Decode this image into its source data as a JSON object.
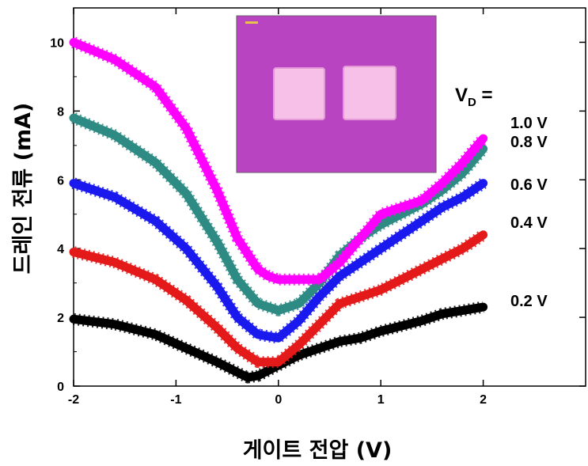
{
  "chart_data": {
    "type": "line",
    "xlabel": "게이트 전압 (V)",
    "ylabel": "드레인 전류 (mA)",
    "xlim": [
      -2,
      3
    ],
    "ylim": [
      0,
      11
    ],
    "xticks": [
      "-2",
      "-1",
      "0",
      "1",
      "2"
    ],
    "yticks": [
      "0",
      "2",
      "4",
      "6",
      "8",
      "10"
    ],
    "legend_title_main": "V",
    "legend_title_sub": "D",
    "legend_title_suffix": " =",
    "grid": false,
    "inset": "optical micrograph of two square electrodes on magenta substrate",
    "series": [
      {
        "name": "1.0 V",
        "color": "#ff00ff",
        "x": [
          -2,
          -1.6,
          -1.2,
          -0.9,
          -0.6,
          -0.4,
          -0.2,
          -0.1,
          0,
          0.2,
          0.4,
          0.6,
          0.8,
          1.0,
          1.2,
          1.4,
          1.6,
          1.8,
          2.0
        ],
        "y": [
          10.0,
          9.5,
          8.7,
          7.5,
          5.7,
          4.3,
          3.4,
          3.2,
          3.1,
          3.1,
          3.1,
          3.6,
          4.3,
          5.0,
          5.2,
          5.4,
          5.9,
          6.5,
          7.2
        ]
      },
      {
        "name": "0.8 V",
        "color": "#2e8b84",
        "x": [
          -2,
          -1.6,
          -1.2,
          -0.9,
          -0.6,
          -0.4,
          -0.2,
          0,
          0.2,
          0.4,
          0.6,
          0.8,
          1.0,
          1.2,
          1.4,
          1.6,
          1.8,
          2.0
        ],
        "y": [
          7.8,
          7.3,
          6.5,
          5.6,
          4.2,
          3.1,
          2.4,
          2.2,
          2.4,
          3.0,
          3.8,
          4.3,
          4.7,
          5.0,
          5.3,
          5.7,
          6.2,
          6.9
        ]
      },
      {
        "name": "0.6 V",
        "color": "#1a1aee",
        "x": [
          -2,
          -1.6,
          -1.2,
          -0.9,
          -0.6,
          -0.4,
          -0.2,
          0,
          0.2,
          0.4,
          0.6,
          0.8,
          1.0,
          1.2,
          1.4,
          1.6,
          1.8,
          2.0
        ],
        "y": [
          5.9,
          5.5,
          4.8,
          4.0,
          2.9,
          2.0,
          1.5,
          1.4,
          1.9,
          2.6,
          3.2,
          3.6,
          4.0,
          4.4,
          4.8,
          5.2,
          5.5,
          5.9
        ]
      },
      {
        "name": "0.4 V",
        "color": "#e41a1a",
        "x": [
          -2,
          -1.6,
          -1.2,
          -0.9,
          -0.6,
          -0.4,
          -0.2,
          0,
          0.2,
          0.4,
          0.6,
          0.8,
          1.0,
          1.2,
          1.4,
          1.6,
          1.8,
          2.0
        ],
        "y": [
          3.9,
          3.6,
          3.1,
          2.5,
          1.7,
          1.1,
          0.7,
          0.7,
          1.2,
          1.8,
          2.4,
          2.6,
          2.8,
          3.1,
          3.4,
          3.7,
          4.0,
          4.4
        ]
      },
      {
        "name": "0.2 V",
        "color": "#000000",
        "x": [
          -2,
          -1.6,
          -1.2,
          -0.9,
          -0.6,
          -0.4,
          -0.3,
          -0.2,
          0,
          0.2,
          0.4,
          0.6,
          0.8,
          1.0,
          1.2,
          1.4,
          1.6,
          1.8,
          2.0
        ],
        "y": [
          1.95,
          1.8,
          1.5,
          1.1,
          0.7,
          0.4,
          0.25,
          0.3,
          0.6,
          0.9,
          1.1,
          1.3,
          1.4,
          1.6,
          1.75,
          1.9,
          2.1,
          2.2,
          2.3
        ]
      }
    ]
  }
}
